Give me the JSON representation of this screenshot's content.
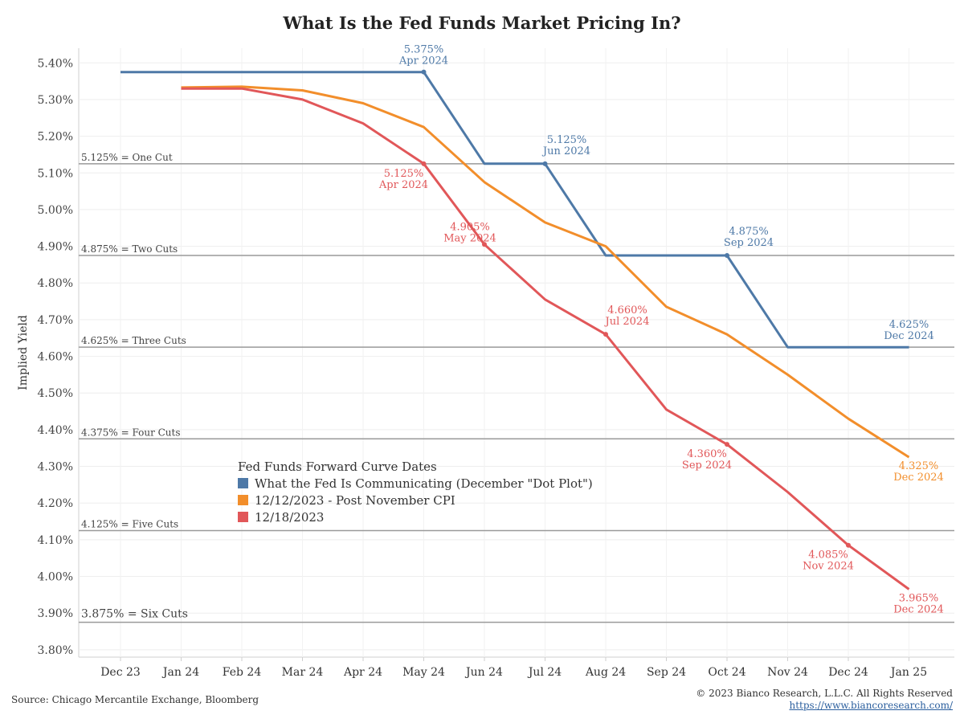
{
  "title": "What Is the Fed Funds Market Pricing In?",
  "chart_data": {
    "type": "line",
    "ylabel": "Implied Yield",
    "ylim": [
      3.78,
      5.44
    ],
    "yticks": [
      3.8,
      3.9,
      4.0,
      4.1,
      4.2,
      4.3,
      4.4,
      4.5,
      4.6,
      4.7,
      4.8,
      4.9,
      5.0,
      5.1,
      5.2,
      5.3,
      5.4
    ],
    "ytick_labels": [
      "3.80%",
      "3.90%",
      "4.00%",
      "4.10%",
      "4.20%",
      "4.30%",
      "4.40%",
      "4.50%",
      "4.60%",
      "4.70%",
      "4.80%",
      "4.90%",
      "5.00%",
      "5.10%",
      "5.20%",
      "5.30%",
      "5.40%"
    ],
    "x_labels": [
      "Dec 23",
      "Jan 24",
      "Feb 24",
      "Mar 24",
      "Apr 24",
      "May 24",
      "Jun 24",
      "Jul 24",
      "Aug 24",
      "Sep 24",
      "Oct 24",
      "Nov 24",
      "Dec 24",
      "Jan 25"
    ],
    "reference_lines": [
      {
        "value": 5.125,
        "label": "5.125% = One Cut"
      },
      {
        "value": 4.875,
        "label": "4.875% = Two Cuts"
      },
      {
        "value": 4.625,
        "label": "4.625% = Three Cuts"
      },
      {
        "value": 4.375,
        "label": "4.375% = Four Cuts"
      },
      {
        "value": 4.125,
        "label": "4.125% = Five Cuts"
      },
      {
        "value": 3.875,
        "label": "3.875% = Six Cuts"
      }
    ],
    "legend_title": "Fed Funds Forward Curve Dates",
    "legend_position": "center-left",
    "series": [
      {
        "name": "What the Fed Is Communicating (December \"Dot Plot\")",
        "color": "#4e79a7",
        "points": [
          [
            0,
            5.375
          ],
          [
            5,
            5.375
          ],
          [
            6,
            5.125
          ],
          [
            7,
            5.125
          ],
          [
            8,
            4.875
          ],
          [
            10,
            4.875
          ],
          [
            11,
            4.625
          ],
          [
            13,
            4.625
          ]
        ],
        "annotations": [
          {
            "x": 5,
            "y": 5.375,
            "text": "5.375%",
            "sub": "Apr 2024",
            "pos": "above",
            "marker": true
          },
          {
            "x": 7,
            "y": 5.125,
            "text": "5.125%",
            "sub": "Jun 2024",
            "pos": "above-right",
            "marker": true
          },
          {
            "x": 10,
            "y": 4.875,
            "text": "4.875%",
            "sub": "Sep 2024",
            "pos": "above-right",
            "marker": true
          },
          {
            "x": 13,
            "y": 4.625,
            "text": "4.625%",
            "sub": "Dec 2024",
            "pos": "above",
            "marker": false
          }
        ]
      },
      {
        "name": "12/12/2023 - Post November CPI",
        "color": "#f28e2b",
        "points": [
          [
            1,
            5.333
          ],
          [
            2,
            5.335
          ],
          [
            3,
            5.325
          ],
          [
            4,
            5.29
          ],
          [
            5,
            5.225
          ],
          [
            6,
            5.075
          ],
          [
            7,
            4.965
          ],
          [
            8,
            4.9
          ],
          [
            9,
            4.735
          ],
          [
            10,
            4.66
          ],
          [
            11,
            4.55
          ],
          [
            12,
            4.43
          ],
          [
            13,
            4.325
          ]
        ],
        "annotations": [
          {
            "x": 13,
            "y": 4.325,
            "text": "4.325%",
            "sub": "Dec 2024",
            "pos": "below-right",
            "marker": false
          }
        ]
      },
      {
        "name": "12/18/2023",
        "color": "#e15759",
        "points": [
          [
            1,
            5.33
          ],
          [
            2,
            5.33
          ],
          [
            3,
            5.3
          ],
          [
            4,
            5.235
          ],
          [
            5,
            5.125
          ],
          [
            6,
            4.905
          ],
          [
            7,
            4.755
          ],
          [
            8,
            4.66
          ],
          [
            9,
            4.455
          ],
          [
            10,
            4.36
          ],
          [
            11,
            4.23
          ],
          [
            12,
            4.085
          ],
          [
            13,
            3.965
          ]
        ],
        "annotations": [
          {
            "x": 5,
            "y": 5.125,
            "text": "5.125%",
            "sub": "Apr 2024",
            "pos": "below-left",
            "marker": true
          },
          {
            "x": 6,
            "y": 4.905,
            "text": "4.905%",
            "sub": "May 2024",
            "pos": "above-left",
            "marker": true
          },
          {
            "x": 8,
            "y": 4.66,
            "text": "4.660%",
            "sub": "Jul 2024",
            "pos": "above-right",
            "marker": true
          },
          {
            "x": 10,
            "y": 4.36,
            "text": "4.360%",
            "sub": "Sep 2024",
            "pos": "below-left",
            "marker": true
          },
          {
            "x": 12,
            "y": 4.085,
            "text": "4.085%",
            "sub": "Nov 2024",
            "pos": "below-left",
            "marker": true
          },
          {
            "x": 13,
            "y": 3.965,
            "text": "3.965%",
            "sub": "Dec 2024",
            "pos": "below-right",
            "marker": false
          }
        ]
      }
    ]
  },
  "footer": {
    "source": "Source: Chicago Mercantile Exchange, Bloomberg",
    "copyright": "© 2023 Bianco Research, L.L.C. All Rights Reserved",
    "url": "https://www.biancoresearch.com/"
  }
}
